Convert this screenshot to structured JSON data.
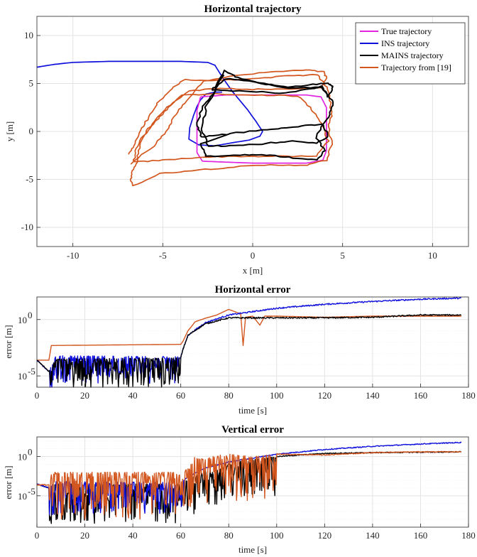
{
  "colors": {
    "true": "#e024e0",
    "ins": "#1010dd",
    "mains": "#000000",
    "ref": "#d2561e",
    "grid": "#e3e3e3",
    "axis": "#262626"
  },
  "chart_data": [
    {
      "type": "line",
      "title": "Horizontal trajectory",
      "xlabel": "x [m]",
      "ylabel": "y [m]",
      "xlim": [
        -12,
        12
      ],
      "ylim": [
        -12,
        12
      ],
      "xticks": [
        -10,
        -5,
        0,
        5,
        10
      ],
      "yticks": [
        -10,
        -5,
        0,
        5,
        10
      ],
      "xticklabels": [
        "-10",
        "-5",
        "0",
        "5",
        "10"
      ],
      "yticklabels": [
        "-10",
        "-5",
        "0",
        "5",
        "10"
      ],
      "grid": true,
      "legend_position": "top-right",
      "series": [
        {
          "name": "True trajectory",
          "color": "#e024e0",
          "points": [
            [
              -2.9,
              3.6
            ],
            [
              -1.5,
              3.8
            ],
            [
              0,
              3.8
            ],
            [
              1.5,
              3.8
            ],
            [
              3,
              3.8
            ],
            [
              3.8,
              3.6
            ],
            [
              4.1,
              2.5
            ],
            [
              4.1,
              1
            ],
            [
              4.1,
              -0.5
            ],
            [
              4.1,
              -2
            ],
            [
              3.9,
              -3
            ],
            [
              3,
              -3.3
            ],
            [
              1.5,
              -3.3
            ],
            [
              0,
              -3.3
            ],
            [
              -1.5,
              -3.2
            ],
            [
              -2.8,
              -3.1
            ],
            [
              -3.1,
              -2.2
            ],
            [
              -3.1,
              -0.8
            ],
            [
              -3.1,
              0.8
            ],
            [
              -3.1,
              2.2
            ],
            [
              -2.9,
              3.6
            ]
          ]
        },
        {
          "name": "INS trajectory",
          "color": "#1010dd",
          "points": [
            [
              -12,
              6.7
            ],
            [
              -11,
              7
            ],
            [
              -10,
              7.2
            ],
            [
              -8,
              7.3
            ],
            [
              -6,
              7.3
            ],
            [
              -4,
              7.3
            ],
            [
              -2.5,
              7.2
            ],
            [
              -2.1,
              6.9
            ],
            [
              -1.9,
              6.3
            ],
            [
              -1.6,
              5.4
            ],
            [
              -1.1,
              4.1
            ],
            [
              -0.3,
              2.3
            ],
            [
              0.2,
              1
            ],
            [
              0.55,
              0
            ],
            [
              0.4,
              -0.5
            ],
            [
              -0.2,
              -0.9
            ],
            [
              -1.2,
              -1.2
            ],
            [
              -2.1,
              -1.5
            ],
            [
              -3,
              -1.4
            ],
            [
              -3.55,
              -0.8
            ],
            [
              -3.5,
              0.4
            ],
            [
              -3.3,
              1.6
            ],
            [
              -3.1,
              2.6
            ],
            [
              -2.9,
              3.3
            ],
            [
              -2.6,
              3.9
            ],
            [
              -2.1,
              4.1
            ],
            [
              -1.7,
              4.1
            ]
          ]
        },
        {
          "name": "MAINS trajectory",
          "color": "#000000",
          "points": [
            [
              -1.5,
              -0.3
            ],
            [
              -2.8,
              -0.6
            ],
            [
              -3.1,
              0.6
            ],
            [
              -2.8,
              2.6
            ],
            [
              -2.2,
              3.9
            ],
            [
              -1.6,
              6.4
            ],
            [
              -0.8,
              5.6
            ],
            [
              0.5,
              5
            ],
            [
              2,
              4.6
            ],
            [
              3.3,
              4.9
            ],
            [
              4.2,
              5
            ],
            [
              4.5,
              4.6
            ],
            [
              4.2,
              3.6
            ],
            [
              3.9,
              4.7
            ],
            [
              3.2,
              4.4
            ],
            [
              1.5,
              4
            ],
            [
              -0.5,
              4.2
            ],
            [
              -2.3,
              4.3
            ],
            [
              -1.5,
              5.5
            ],
            [
              0,
              5.2
            ],
            [
              2,
              4.5
            ],
            [
              3.8,
              4.6
            ],
            [
              4.5,
              3
            ],
            [
              4.2,
              1.5
            ],
            [
              3.5,
              -0.5
            ],
            [
              4,
              -2
            ],
            [
              3.6,
              -3
            ],
            [
              2,
              -2.7
            ],
            [
              0.5,
              -2.4
            ],
            [
              -1,
              -2.5
            ],
            [
              -2.6,
              -2.6
            ],
            [
              -2.9,
              -1.3
            ],
            [
              -1.2,
              -0.2
            ],
            [
              0.8,
              0.2
            ],
            [
              2.5,
              0.5
            ],
            [
              3.9,
              0.8
            ],
            [
              4.2,
              -0.5
            ],
            [
              3.6,
              -1.2
            ],
            [
              2,
              -1
            ],
            [
              0.5,
              -1.3
            ],
            [
              -1,
              -1.5
            ],
            [
              -2.5,
              -1.5
            ],
            [
              -2.8,
              0.2
            ],
            [
              -2.6,
              2.5
            ],
            [
              -1.6,
              5.9
            ]
          ]
        },
        {
          "name": "Trajectory from [19]",
          "color": "#d2561e",
          "points": [
            [
              -6.8,
              -3.4
            ],
            [
              -5.5,
              -1.5
            ],
            [
              -4.8,
              0
            ],
            [
              -4.3,
              1.8
            ],
            [
              -3.7,
              3.2
            ],
            [
              -2.7,
              5.3
            ],
            [
              -1,
              5.8
            ],
            [
              1,
              6.2
            ],
            [
              3,
              6.4
            ],
            [
              4,
              6.2
            ],
            [
              4.1,
              5.5
            ],
            [
              3.8,
              4.6
            ],
            [
              2,
              4.4
            ],
            [
              0,
              4.4
            ],
            [
              -1.8,
              4.5
            ],
            [
              -3.5,
              4.2
            ],
            [
              -4.6,
              2.8
            ],
            [
              -5.4,
              1.3
            ],
            [
              -6,
              -0.2
            ],
            [
              -6.5,
              -1.8
            ],
            [
              -6.6,
              -3.2
            ],
            [
              -5,
              -3
            ],
            [
              -3,
              -2.7
            ],
            [
              -1,
              -2.6
            ],
            [
              1,
              -2.6
            ],
            [
              3.5,
              -2.6
            ],
            [
              4.2,
              -1
            ],
            [
              3.8,
              0.8
            ],
            [
              3.3,
              2.3
            ],
            [
              2.5,
              3.7
            ],
            [
              0.5,
              3.8
            ],
            [
              -2,
              3.9
            ],
            [
              -3.9,
              3.8
            ],
            [
              -4.8,
              2.3
            ],
            [
              -5.5,
              0.8
            ],
            [
              -6.1,
              -0.6
            ],
            [
              -6.4,
              -2.3
            ],
            [
              -6.5,
              -3.6
            ],
            [
              -6.8,
              -4.6
            ],
            [
              -6.7,
              -5.7
            ],
            [
              -5.2,
              -4.4
            ],
            [
              -3,
              -4
            ],
            [
              -1,
              -3.7
            ],
            [
              1,
              -3.5
            ],
            [
              3,
              -3.5
            ],
            [
              4.1,
              -3
            ],
            [
              4.4,
              -1.3
            ],
            [
              4.2,
              0.5
            ],
            [
              4.4,
              1.8
            ],
            [
              4.3,
              3.2
            ],
            [
              4.1,
              4.6
            ],
            [
              3.6,
              5.9
            ],
            [
              2,
              5.8
            ],
            [
              0,
              5.5
            ],
            [
              -2,
              5.3
            ],
            [
              -3.8,
              5.4
            ],
            [
              -4.5,
              4.5
            ],
            [
              -5.3,
              3
            ],
            [
              -5.8,
              1.5
            ],
            [
              -6.2,
              0.1
            ],
            [
              -6.6,
              -1.5
            ],
            [
              -6.9,
              -2.4
            ]
          ]
        }
      ]
    },
    {
      "type": "line",
      "title": "Horizontal error",
      "xlabel": "time [s]",
      "ylabel": "error [m]",
      "xlim": [
        0,
        180
      ],
      "ylim_log10": [
        -6,
        2
      ],
      "yscale": "log",
      "xticks": [
        0,
        20,
        40,
        60,
        80,
        100,
        120,
        140,
        160,
        180
      ],
      "xticklabels": [
        "0",
        "20",
        "40",
        "60",
        "80",
        "100",
        "120",
        "140",
        "160",
        "180"
      ],
      "ytick_labels": [
        {
          "base": "10",
          "exp": "-5",
          "log10": -5
        },
        {
          "base": "10",
          "exp": "0",
          "log10": 0
        }
      ],
      "grid": true,
      "series": [
        {
          "color": "#000000",
          "style": "noisy",
          "t": [
            0,
            5,
            8,
            60,
            61,
            63,
            70,
            80,
            100,
            120,
            140,
            160,
            177
          ],
          "log10": [
            -3.6,
            -4.6,
            -3.5,
            -3.4,
            -2.6,
            -1.4,
            -0.4,
            0.15,
            0.15,
            0.15,
            0.2,
            0.4,
            0.4
          ],
          "noise_until": 60,
          "noise_amp": 1.3
        },
        {
          "color": "#1010dd",
          "style": "noisy",
          "t": [
            0,
            5,
            8,
            60,
            61,
            63,
            70,
            80,
            100,
            120,
            140,
            160,
            177
          ],
          "log10": [
            -3.6,
            -4.6,
            -3.2,
            -3.3,
            -2.6,
            -1.4,
            -0.3,
            0.4,
            1,
            1.35,
            1.6,
            1.8,
            1.9
          ],
          "noise_until": 60,
          "noise_amp": 1.2
        },
        {
          "color": "#d2561e",
          "style": "smooth",
          "t": [
            0,
            5,
            6,
            8,
            60,
            61,
            63,
            66,
            70,
            75,
            80,
            85,
            86,
            87,
            90,
            93,
            95,
            100,
            120,
            140,
            160,
            177
          ],
          "log10": [
            -3.6,
            -3.6,
            -2.3,
            -2.3,
            -2.2,
            -1.9,
            -1,
            -0.2,
            0.1,
            0.4,
            0.9,
            0.5,
            -2.3,
            0.2,
            0.3,
            -0.5,
            0.3,
            0.3,
            0.2,
            0.3,
            0.3,
            0.3
          ]
        }
      ]
    },
    {
      "type": "line",
      "title": "Vertical error",
      "xlabel": "time [s]",
      "ylabel": "error [m]",
      "xlim": [
        0,
        180
      ],
      "ylim_log10": [
        -9,
        2.5
      ],
      "yscale": "log",
      "xticks": [
        0,
        20,
        40,
        60,
        80,
        100,
        120,
        140,
        160,
        180
      ],
      "xticklabels": [
        "0",
        "20",
        "40",
        "60",
        "80",
        "100",
        "120",
        "140",
        "160",
        "180"
      ],
      "ytick_labels": [
        {
          "base": "10",
          "exp": "-5",
          "log10": -5
        },
        {
          "base": "10",
          "exp": "0",
          "log10": 0
        }
      ],
      "grid": true,
      "series": [
        {
          "color": "#000000",
          "style": "noisy",
          "t": [
            0,
            5,
            8,
            60,
            61,
            63,
            70,
            80,
            100,
            120,
            140,
            160,
            177
          ],
          "log10": [
            -3.5,
            -4,
            -3.5,
            -3.5,
            -3.2,
            -3,
            -1.8,
            -0.8,
            0,
            0.4,
            0.5,
            0.55,
            0.6
          ],
          "noise_until": 100,
          "noise_amp": 2.5
        },
        {
          "color": "#1010dd",
          "style": "noisy",
          "t": [
            0,
            5,
            8,
            60,
            61,
            63,
            70,
            80,
            100,
            120,
            140,
            160,
            177
          ],
          "log10": [
            -3.5,
            -4,
            -3.2,
            -3.3,
            -3,
            -2.6,
            -1.5,
            -0.7,
            0.3,
            0.9,
            1.3,
            1.6,
            1.8
          ],
          "noise_until": 62,
          "noise_amp": 2
        },
        {
          "color": "#d2561e",
          "style": "noisy",
          "t": [
            0,
            5,
            6,
            60,
            61,
            63,
            66,
            70,
            75,
            80,
            90,
            100,
            120,
            140,
            160,
            177
          ],
          "log10": [
            -3.6,
            -3.6,
            -2,
            -2,
            -2,
            -1.5,
            0,
            -0.4,
            0.2,
            0.3,
            0,
            0.3,
            0.2,
            0.5,
            0.6,
            0.6
          ],
          "noise_until": 100,
          "noise_amp": 3
        }
      ]
    }
  ]
}
